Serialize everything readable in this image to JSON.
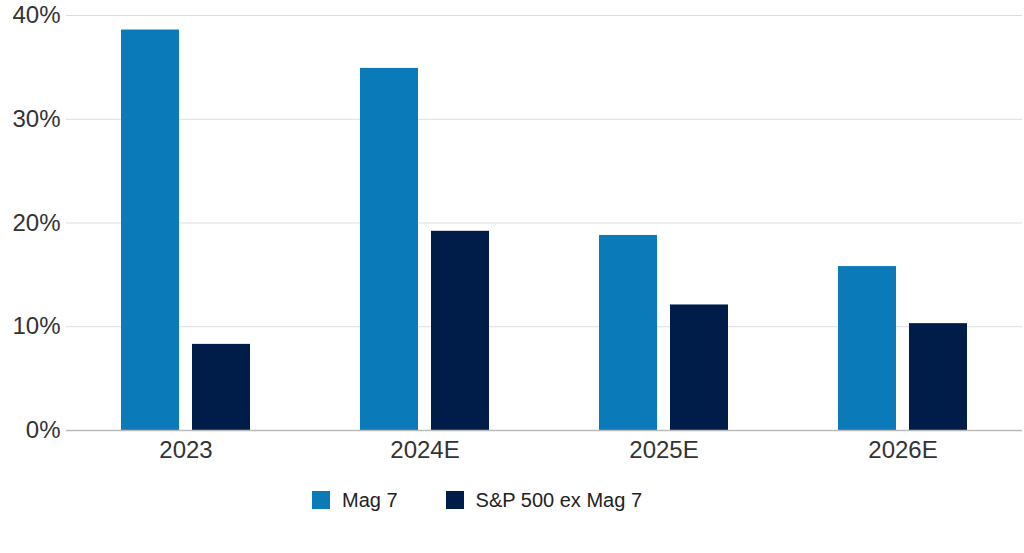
{
  "chart_data": {
    "type": "bar",
    "categories": [
      "2023",
      "2024E",
      "2025E",
      "2026E"
    ],
    "series": [
      {
        "name": "Mag 7",
        "color": "#0a7ab8",
        "values": [
          38.6,
          34.9,
          18.8,
          15.8
        ]
      },
      {
        "name": "S&P 500 ex Mag 7",
        "color": "#001d4a",
        "values": [
          8.3,
          19.2,
          12.1,
          10.3
        ]
      }
    ],
    "ylim": [
      0,
      40
    ],
    "yticks": [
      {
        "value": 0,
        "label": "0%"
      },
      {
        "value": 10,
        "label": "10%"
      },
      {
        "value": 20,
        "label": "20%"
      },
      {
        "value": 30,
        "label": "30%"
      },
      {
        "value": 40,
        "label": "40%"
      }
    ],
    "grid": true,
    "legend": "bottom"
  }
}
